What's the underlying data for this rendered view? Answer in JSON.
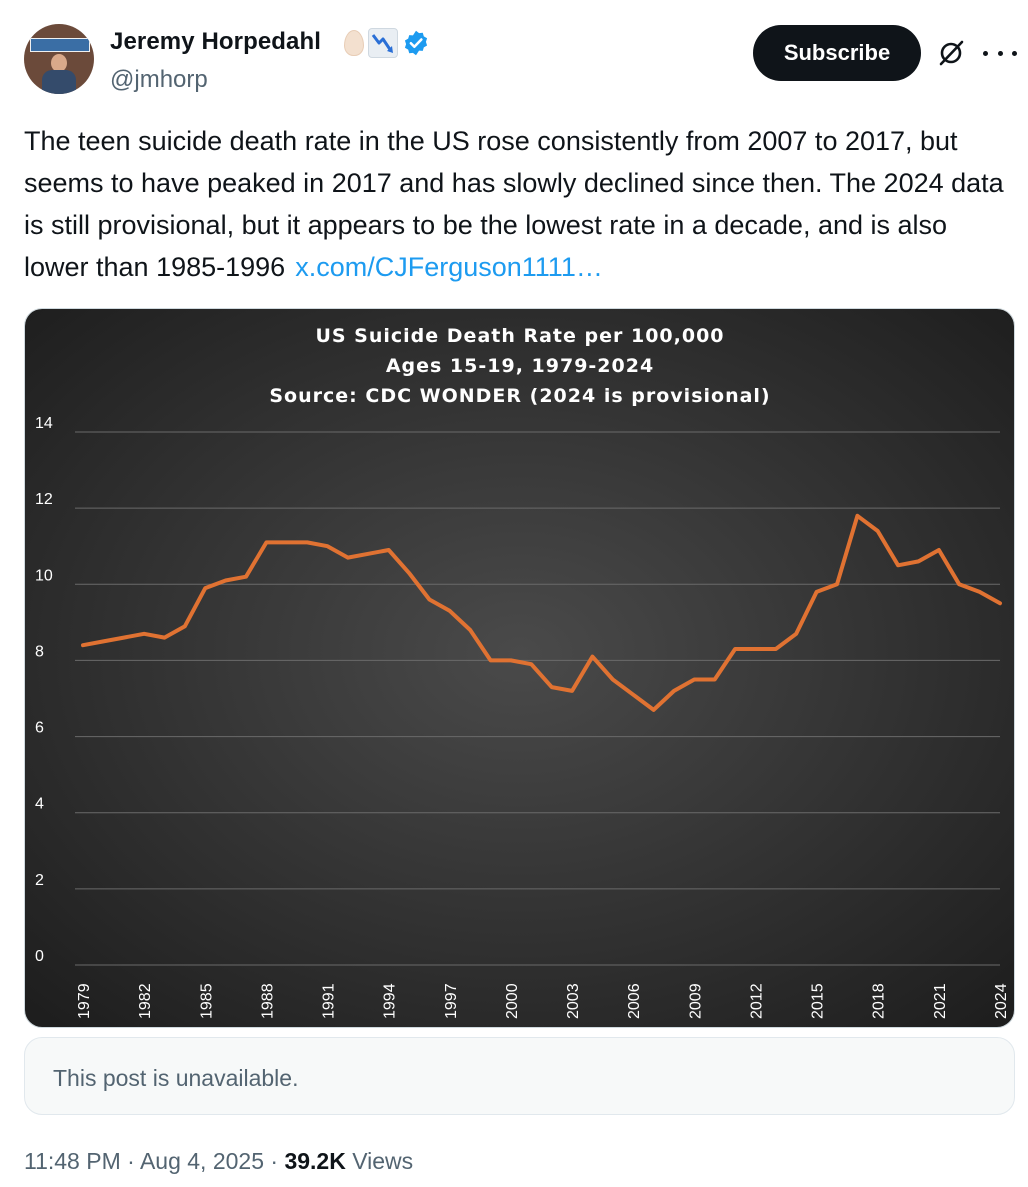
{
  "author": {
    "display_name": "Jeremy Horpedahl",
    "handle": "@jmhorp",
    "avatar_icon": "avatar-photo",
    "badges": [
      "egg-emoji-icon",
      "chart-decreasing-emoji-icon",
      "verified-badge-icon"
    ],
    "verified_color": "#1d9bf0"
  },
  "actions": {
    "subscribe_label": "Subscribe",
    "grok_icon": "grok-icon",
    "more_icon": "more-icon"
  },
  "tweet": {
    "text": "The teen suicide death rate in the US rose consistently from 2007 to 2017, but seems to have peaked in 2017 and has slowly declined since then. The 2024 data is still provisional, but it appears to be the lowest rate in a decade, and is also lower than 1985-1996",
    "link_text": "x.com/CJFerguson1111…",
    "link_color": "#1d9bf0"
  },
  "chart_data": {
    "type": "line",
    "title_lines": [
      "US Suicide Death Rate per 100,000",
      "Ages 15-19, 1979-2024",
      "Source: CDC WONDER (2024 is provisional)"
    ],
    "x": [
      1979,
      1980,
      1981,
      1982,
      1983,
      1984,
      1985,
      1986,
      1987,
      1988,
      1989,
      1990,
      1991,
      1992,
      1993,
      1994,
      1995,
      1996,
      1997,
      1998,
      1999,
      2000,
      2001,
      2002,
      2003,
      2004,
      2005,
      2006,
      2007,
      2008,
      2009,
      2010,
      2011,
      2012,
      2013,
      2014,
      2015,
      2016,
      2017,
      2018,
      2019,
      2020,
      2021,
      2022,
      2023,
      2024
    ],
    "series": [
      {
        "values": [
          8.4,
          8.5,
          8.6,
          8.7,
          8.6,
          8.9,
          9.9,
          10.1,
          10.2,
          11.1,
          11.1,
          11.1,
          11.0,
          10.7,
          10.8,
          10.9,
          10.3,
          9.6,
          9.3,
          8.8,
          8.0,
          8.0,
          7.9,
          7.3,
          7.2,
          8.1,
          7.5,
          7.1,
          6.7,
          7.2,
          7.5,
          7.5,
          8.3,
          8.3,
          8.3,
          8.7,
          9.8,
          10.0,
          11.8,
          11.4,
          10.5,
          10.6,
          10.9,
          10.0,
          9.8,
          9.5
        ],
        "color": "#e07232"
      }
    ],
    "x_tick_labels": [
      "1979",
      "1982",
      "1985",
      "1988",
      "1991",
      "1994",
      "1997",
      "2000",
      "2003",
      "2006",
      "2009",
      "2012",
      "2015",
      "2018",
      "2021",
      "2024"
    ],
    "y_tick_labels": [
      "0",
      "2",
      "4",
      "6",
      "8",
      "10",
      "12",
      "14"
    ],
    "ylim": [
      0,
      14
    ],
    "grid": true,
    "background": "#2b2b2b",
    "text_color": "#ffffff"
  },
  "quote": {
    "text": "This post is unavailable."
  },
  "meta": {
    "time": "11:48 PM",
    "date": "Aug 4, 2025",
    "separator": "·",
    "views_count": "39.2K",
    "views_label": "Views"
  }
}
